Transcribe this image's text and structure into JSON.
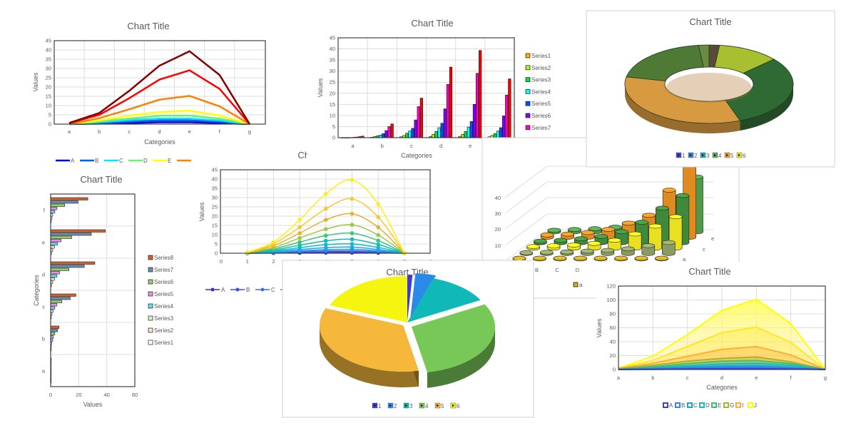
{
  "chart_data": [
    {
      "type": "line",
      "title": "Chart Title",
      "xlabel": "Categories",
      "ylabel": "Values",
      "ylim": [
        0,
        45
      ],
      "y_ticks": [
        0,
        5,
        10,
        15,
        20,
        25,
        30,
        35,
        40,
        45
      ],
      "categories": [
        "a",
        "b",
        "c",
        "d",
        "e",
        "f",
        "g"
      ],
      "grid": true,
      "legend": "bottom",
      "series": [
        {
          "name": "A",
          "color": "#0000d0",
          "values": [
            0,
            0.3,
            0.6,
            1,
            1,
            0.6,
            0
          ]
        },
        {
          "name": "B",
          "color": "#0060ff",
          "values": [
            0,
            0.6,
            1.3,
            2,
            2,
            1.3,
            0
          ]
        },
        {
          "name": "C",
          "color": "#00e8ff",
          "values": [
            0,
            1,
            2.2,
            3,
            3,
            2,
            0
          ]
        },
        {
          "name": "D",
          "color": "#70f070",
          "values": [
            0,
            1.5,
            3,
            4.5,
            4.6,
            3,
            0
          ]
        },
        {
          "name": "E",
          "color": "#ffff00",
          "values": [
            0,
            2,
            4.5,
            6.5,
            7.2,
            4.6,
            0
          ]
        },
        {
          "color": "#ff8000",
          "values": [
            0,
            3.2,
            8,
            13.2,
            15.2,
            9.6,
            0
          ]
        },
        {
          "color": "#ff0000",
          "values": [
            0.5,
            5,
            14,
            24,
            29,
            19,
            0
          ]
        },
        {
          "color": "#800000",
          "values": [
            0.6,
            6,
            18,
            31.5,
            39.3,
            26.5,
            0
          ]
        }
      ]
    },
    {
      "type": "bar",
      "title": "Chart Title",
      "xlabel": "Categories",
      "ylabel": "Values",
      "ylim": [
        0,
        45
      ],
      "y_ticks": [
        0,
        5,
        10,
        15,
        20,
        25,
        30,
        35,
        40,
        45
      ],
      "categories": [
        "a",
        "b",
        "c",
        "d",
        "e",
        ""
      ],
      "grid": true,
      "legend": "right",
      "series": [
        {
          "name": "Series1",
          "color": "#ffb000",
          "values": [
            0,
            0.2,
            0.4,
            0.6,
            0.6,
            0.4
          ]
        },
        {
          "name": "Series2",
          "color": "#a0ff00",
          "values": [
            0,
            0.5,
            1,
            1.5,
            1.5,
            1
          ]
        },
        {
          "name": "Series3",
          "color": "#00e040",
          "values": [
            0,
            0.8,
            2,
            2.8,
            2.8,
            1.8
          ]
        },
        {
          "name": "Series4",
          "color": "#00ffff",
          "values": [
            0.1,
            1.2,
            3,
            4.5,
            4.8,
            3
          ]
        },
        {
          "name": "Series5",
          "color": "#0050ff",
          "values": [
            0.2,
            1.8,
            4.2,
            6.5,
            7.3,
            4.5
          ]
        },
        {
          "name": "Series6",
          "color": "#8000ff",
          "values": [
            0.3,
            3.2,
            8,
            13,
            15,
            9.8
          ]
        },
        {
          "name": "Series7",
          "color": "#ff00c0",
          "values": [
            0.5,
            5,
            14,
            24,
            29,
            19.2
          ]
        },
        {
          "color": "#ff0000",
          "values": [
            0.7,
            6.2,
            17.8,
            31.8,
            39.3,
            26.5
          ]
        }
      ]
    },
    {
      "type": "bar",
      "orientation": "horizontal",
      "title": "Chart Title",
      "xlabel": "Values",
      "ylabel": "Categories",
      "xlim": [
        0,
        60
      ],
      "x_ticks": [
        0,
        20,
        40,
        60
      ],
      "categories": [
        "a",
        "b",
        "c",
        "d",
        "e",
        "f"
      ],
      "grid": true,
      "legend": "right",
      "series": [
        {
          "name": "Series1",
          "color": "#ffffff",
          "values": [
            0.1,
            0.2,
            0.4,
            0.6,
            0.6,
            0.4
          ]
        },
        {
          "name": "Series2",
          "color": "#fde0c8",
          "values": [
            0.1,
            0.5,
            1,
            1.5,
            1.5,
            1
          ]
        },
        {
          "name": "Series3",
          "color": "#d8f0d0",
          "values": [
            0.1,
            0.8,
            1.8,
            2.8,
            2.8,
            1.5
          ]
        },
        {
          "name": "Series4",
          "color": "#70d8f8",
          "values": [
            0.1,
            1.5,
            3,
            4.5,
            5,
            3
          ]
        },
        {
          "name": "Series5",
          "color": "#e890e8",
          "values": [
            0.2,
            2,
            4.5,
            6.5,
            7.5,
            4.5
          ]
        },
        {
          "name": "Series6",
          "color": "#90d070",
          "values": [
            0.3,
            3,
            8,
            13,
            15,
            10
          ]
        },
        {
          "name": "Series7",
          "color": "#6890b0",
          "values": [
            0.4,
            5,
            14,
            24,
            29,
            19.5
          ]
        },
        {
          "name": "Series8",
          "color": "#d06030",
          "values": [
            0.5,
            6,
            18,
            31.5,
            39,
            26.5
          ]
        }
      ]
    },
    {
      "type": "line",
      "smooth": true,
      "title": "Chart Title",
      "ylabel": "Values",
      "ylim": [
        0,
        45
      ],
      "xlim": [
        0,
        8
      ],
      "y_ticks": [
        0,
        5,
        10,
        15,
        20,
        25,
        30,
        35,
        40,
        45
      ],
      "x_ticks": [
        0,
        1,
        2,
        3,
        4,
        5,
        6,
        7,
        8
      ],
      "x": [
        1,
        2,
        3,
        4,
        5,
        6,
        7
      ],
      "grid": true,
      "legend": "bottom",
      "series": [
        {
          "name": "A",
          "color": "#3b2bd6",
          "values": [
            0,
            0.1,
            0.2,
            0.3,
            0.3,
            0.2,
            0
          ]
        },
        {
          "name": "B",
          "color": "#3f48e8",
          "values": [
            0,
            0.2,
            0.5,
            0.7,
            0.8,
            0.5,
            0
          ]
        },
        {
          "name": "C",
          "color": "#3a6ef0",
          "values": [
            0,
            0.3,
            0.8,
            1.2,
            1.3,
            0.8,
            0
          ]
        },
        {
          "color": "#2f8ff0",
          "values": [
            0,
            0.5,
            1.3,
            1.9,
            2.1,
            1.3,
            0
          ]
        },
        {
          "color": "#1fa8e6",
          "values": [
            0.1,
            0.8,
            2,
            3,
            3.3,
            2,
            0
          ]
        },
        {
          "color": "#12b8d0",
          "values": [
            0.1,
            1.2,
            3,
            4.6,
            5,
            3.1,
            0
          ]
        },
        {
          "color": "#10bfb0",
          "values": [
            0.1,
            1.7,
            4.3,
            6.7,
            7.5,
            4.7,
            0
          ]
        },
        {
          "color": "#3cc47a",
          "values": [
            0.2,
            2.3,
            6,
            9.5,
            10.8,
            6.8,
            0
          ]
        },
        {
          "color": "#9cc840",
          "values": [
            0.2,
            3,
            8.2,
            13,
            15.3,
            9.8,
            0
          ]
        },
        {
          "color": "#e8b030",
          "values": [
            0.3,
            4,
            10.8,
            18,
            21.3,
            14,
            0
          ]
        },
        {
          "color": "#f8c830",
          "values": [
            0.4,
            5,
            14,
            24,
            29.3,
            19.5,
            0
          ]
        },
        {
          "color": "#ffee10",
          "values": [
            0.5,
            6,
            18,
            32,
            39.5,
            26.5,
            0
          ]
        }
      ]
    },
    {
      "type": "bar",
      "variant": "3d-cylinder",
      "z_ticks": [
        10,
        20,
        30,
        40
      ],
      "categories": [
        "A",
        "B",
        "C",
        "D",
        "",
        "",
        "",
        ""
      ],
      "depth_labels": [
        "",
        "",
        "a",
        "",
        "c",
        "e"
      ],
      "legend_visible": [
        "a"
      ],
      "legend_color": "#c8b020",
      "series": [
        {
          "color": "#c0a020",
          "values": [
            0.5,
            0.5,
            0.5,
            0.5,
            0.5,
            0.5,
            0.5,
            0.5
          ]
        },
        {
          "color": "#8a9a60",
          "values": [
            0.5,
            0.8,
            1,
            1.5,
            2,
            3,
            5,
            7
          ]
        },
        {
          "color": "#e8e020",
          "values": [
            1,
            1.5,
            2,
            3,
            5,
            9,
            14,
            20
          ]
        },
        {
          "color": "#3f8a3a",
          "values": [
            1,
            1.5,
            2.5,
            4,
            7,
            13,
            22,
            30
          ]
        },
        {
          "color": "#e08a20",
          "values": [
            1.5,
            2,
            3,
            5,
            9,
            14,
            30,
            47
          ]
        },
        {
          "color": "#4f9a4a",
          "values": [
            1,
            1.5,
            2,
            3,
            5,
            8,
            20,
            35
          ]
        }
      ]
    },
    {
      "type": "pie",
      "variant": "3d-doughnut",
      "title": "Chart Title",
      "labels": [
        "1",
        "2",
        "3",
        "4",
        "5",
        "6"
      ],
      "values": [
        2,
        12,
        30,
        34,
        20,
        2
      ],
      "colors": [
        "#4040e0",
        "#2f80e0",
        "#10b0b0",
        "#5cb04c",
        "#f0a030",
        "#f0f000"
      ],
      "fills": [
        "#5a4a3a",
        "#a8c030",
        "#2f6a35",
        "#d89a40",
        "#4f7a35",
        "#6a8a40"
      ],
      "legend": "bottom"
    },
    {
      "type": "pie",
      "variant": "3d",
      "title": "Chart Title",
      "labels": [
        "1",
        "2",
        "3",
        "4",
        "5",
        "6"
      ],
      "values": [
        1,
        4,
        12,
        30,
        34,
        19
      ],
      "colors": [
        "#3a3ae0",
        "#2a8ae8",
        "#10b8b8",
        "#78c858",
        "#f5b83a",
        "#f5f510"
      ],
      "legend": "bottom"
    },
    {
      "type": "area",
      "title": "Chart Title",
      "xlabel": "Categories",
      "ylabel": "Values",
      "ylim": [
        0,
        120
      ],
      "y_ticks": [
        0,
        20,
        40,
        60,
        80,
        100,
        120
      ],
      "categories": [
        "a",
        "b",
        "c",
        "d",
        "e",
        "f",
        "g"
      ],
      "grid": true,
      "legend": "bottom",
      "series": [
        {
          "name": "A",
          "color": "#4040e0",
          "values": [
            0,
            0.3,
            0.8,
            1.2,
            1.3,
            0.8,
            0
          ]
        },
        {
          "name": "B",
          "color": "#3080ff",
          "values": [
            0,
            0.8,
            2,
            3,
            3.3,
            2,
            0
          ]
        },
        {
          "name": "C",
          "color": "#20a0e0",
          "values": [
            0,
            1.5,
            3.5,
            5,
            5.5,
            3.5,
            0
          ]
        },
        {
          "name": "D",
          "color": "#10c0c0",
          "values": [
            0.3,
            2.5,
            5.5,
            8,
            9,
            6,
            0
          ]
        },
        {
          "name": "E",
          "color": "#40c070",
          "values": [
            0.5,
            4,
            8.5,
            12,
            13,
            8.5,
            0
          ]
        },
        {
          "name": "G",
          "color": "#b0b030",
          "values": [
            1,
            6,
            12,
            16,
            18,
            11,
            0
          ]
        },
        {
          "name": "I",
          "color": "#ffb030",
          "values": [
            1.5,
            9,
            19,
            29,
            33,
            21,
            0
          ]
        },
        {
          "color": "#ffe820",
          "values": [
            2,
            13,
            33,
            53,
            61,
            39,
            0
          ]
        },
        {
          "name": "J",
          "color": "#ffff00",
          "values": [
            2,
            19,
            50,
            85,
            101,
            66,
            0
          ]
        }
      ]
    }
  ]
}
